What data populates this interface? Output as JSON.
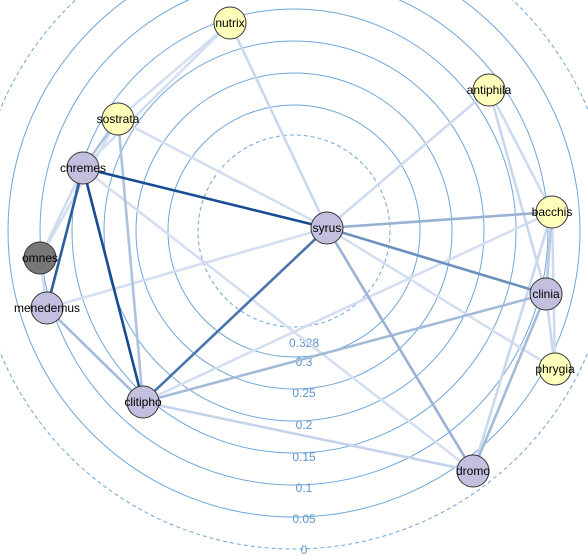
{
  "colors": {
    "ring": "#6fa6d8",
    "ring_dashed": "#6fa6d8",
    "ring_label": "#5b95cc",
    "node_yellow": "#ffffbb",
    "node_lilac": "#c2c0de",
    "node_gray": "#777777",
    "node_stroke": "#333333"
  },
  "rings": [
    {
      "label": "0.328",
      "dashed": true
    },
    {
      "label": "0.3",
      "dashed": false
    },
    {
      "label": "0.25",
      "dashed": false
    },
    {
      "label": "0.2",
      "dashed": false
    },
    {
      "label": "0.15",
      "dashed": false
    },
    {
      "label": "0.1",
      "dashed": false
    },
    {
      "label": "0.05",
      "dashed": false
    },
    {
      "label": "0",
      "dashed": true
    }
  ],
  "nodes": [
    {
      "id": "nutrix",
      "label": "nutrix",
      "fill": "yellow"
    },
    {
      "id": "antiphila",
      "label": "antiphila",
      "fill": "yellow"
    },
    {
      "id": "sostrata",
      "label": "sostrata",
      "fill": "yellow"
    },
    {
      "id": "chremes",
      "label": "chremes",
      "fill": "lilac"
    },
    {
      "id": "bacchis",
      "label": "bacchis",
      "fill": "yellow"
    },
    {
      "id": "syrus",
      "label": "syrus",
      "fill": "lilac"
    },
    {
      "id": "omnes",
      "label": "omnes",
      "fill": "gray"
    },
    {
      "id": "clinia",
      "label": "clinia",
      "fill": "lilac"
    },
    {
      "id": "menedemus",
      "label": "menedemus",
      "fill": "lilac"
    },
    {
      "id": "phrygia",
      "label": "phrygia",
      "fill": "yellow"
    },
    {
      "id": "clitipho",
      "label": "clitipho",
      "fill": "lilac"
    },
    {
      "id": "dromo",
      "label": "dromo",
      "fill": "lilac"
    }
  ],
  "edges": [
    {
      "from": "chremes",
      "to": "syrus",
      "strength": 0.95
    },
    {
      "from": "chremes",
      "to": "clitipho",
      "strength": 0.95
    },
    {
      "from": "chremes",
      "to": "menedemus",
      "strength": 0.85
    },
    {
      "from": "clitipho",
      "to": "syrus",
      "strength": 0.7
    },
    {
      "from": "syrus",
      "to": "clinia",
      "strength": 0.55
    },
    {
      "from": "syrus",
      "to": "bacchis",
      "strength": 0.35
    },
    {
      "from": "syrus",
      "to": "dromo",
      "strength": 0.35
    },
    {
      "from": "clitipho",
      "to": "clinia",
      "strength": 0.3
    },
    {
      "from": "menedemus",
      "to": "clitipho",
      "strength": 0.3
    },
    {
      "from": "sostrata",
      "to": "clitipho",
      "strength": 0.25
    },
    {
      "from": "sostrata",
      "to": "chremes",
      "strength": 0.25
    },
    {
      "from": "clinia",
      "to": "dromo",
      "strength": 0.3
    },
    {
      "from": "clinia",
      "to": "bacchis",
      "strength": 0.2
    },
    {
      "from": "clitipho",
      "to": "dromo",
      "strength": 0.15
    },
    {
      "from": "nutrix",
      "to": "syrus",
      "strength": 0.12
    },
    {
      "from": "antiphila",
      "to": "syrus",
      "strength": 0.1
    },
    {
      "from": "antiphila",
      "to": "clinia",
      "strength": 0.12
    },
    {
      "from": "antiphila",
      "to": "bacchis",
      "strength": 0.1
    },
    {
      "from": "bacchis",
      "to": "dromo",
      "strength": 0.12
    },
    {
      "from": "bacchis",
      "to": "phrygia",
      "strength": 0.1
    },
    {
      "from": "phrygia",
      "to": "clinia",
      "strength": 0.12
    },
    {
      "from": "phrygia",
      "to": "syrus",
      "strength": 0.08
    },
    {
      "from": "nutrix",
      "to": "sostrata",
      "strength": 0.08
    },
    {
      "from": "nutrix",
      "to": "chremes",
      "strength": 0.08
    },
    {
      "from": "sostrata",
      "to": "syrus",
      "strength": 0.08
    },
    {
      "from": "menedemus",
      "to": "syrus",
      "strength": 0.08
    },
    {
      "from": "omnes",
      "to": "chremes",
      "strength": 0.1
    },
    {
      "from": "omnes",
      "to": "menedemus",
      "strength": 0.1
    },
    {
      "from": "omnes",
      "to": "sostrata",
      "strength": 0.08
    },
    {
      "from": "chremes",
      "to": "dromo",
      "strength": 0.08
    },
    {
      "from": "clitipho",
      "to": "bacchis",
      "strength": 0.08
    }
  ]
}
